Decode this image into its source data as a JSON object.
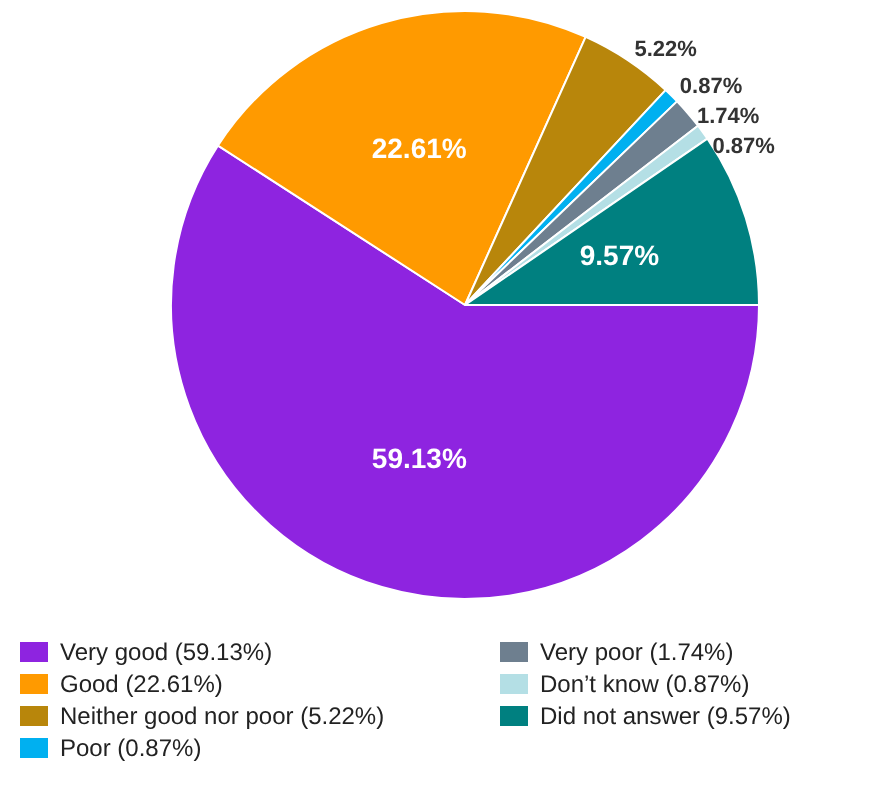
{
  "chart_data": {
    "type": "pie",
    "categories": [
      "Very good (59.13%)",
      "Good (22.61%)",
      "Neither good nor poor (5.22%)",
      "Poor (0.87%)",
      "Very poor (1.74%)",
      "Don’t know (0.87%)",
      "Did not answer (9.57%)"
    ],
    "values": [
      59.13,
      22.61,
      5.22,
      0.87,
      1.74,
      0.87,
      9.57
    ],
    "value_labels": [
      "59.13%",
      "22.61%",
      "5.22%",
      "0.87%",
      "1.74%",
      "0.87%",
      "9.57%"
    ],
    "colors": [
      "#8e24e0",
      "#ff9a00",
      "#b8860b",
      "#00b0f0",
      "#6e7f8f",
      "#b4dfe5",
      "#008080"
    ],
    "legend": "bottom"
  }
}
